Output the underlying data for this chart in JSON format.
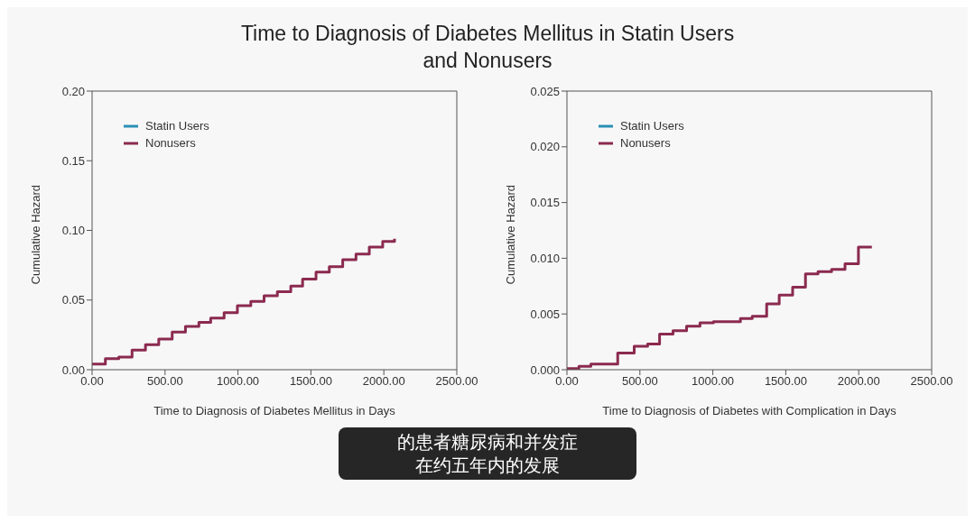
{
  "chart_data": [
    {
      "type": "step",
      "title": "Time to Diagnosis of Diabetes Mellitus in Statin Users and Nonusers",
      "xlabel": "Time to Diagnosis of Diabetes Mellitus in Days",
      "ylabel": "Cumulative Hazard",
      "annotations": [
        "的患者糖尿病和并发症在约五年内的发展"
      ],
      "legend": "top left",
      "grid": false,
      "xlim": [
        0,
        2500
      ],
      "xticks": [
        {
          "value": 0,
          "label": "0.00"
        },
        {
          "value": 500,
          "label": "500.00"
        },
        {
          "value": 1000,
          "label": "1000.00"
        },
        {
          "value": 1500,
          "label": "1500.00"
        },
        {
          "value": 2000,
          "label": "2000.00"
        },
        {
          "value": 2500,
          "label": "2500.00"
        }
      ],
      "ylim": [
        0,
        0.2
      ],
      "yticks": [
        {
          "value": 0,
          "label": "0.00"
        },
        {
          "value": 0.05,
          "label": "0.05"
        },
        {
          "value": 0.1,
          "label": "0.10"
        },
        {
          "value": 0.15,
          "label": "0.15"
        },
        {
          "value": 0.2,
          "label": "0.20"
        }
      ],
      "series": [
        {
          "name": "Statin Users",
          "color": "#2a8fb5"
        },
        {
          "name": "Nonusers",
          "color": "#8b2a4f",
          "x": [
            0,
            91,
            183,
            274,
            366,
            457,
            549,
            640,
            732,
            813,
            905,
            996,
            1088,
            1179,
            1270,
            1362,
            1443,
            1535,
            1626,
            1718,
            1809,
            1900,
            1992,
            2073
          ],
          "values": [
            0.004,
            0.008,
            0.009,
            0.014,
            0.018,
            0.022,
            0.027,
            0.031,
            0.034,
            0.037,
            0.041,
            0.046,
            0.049,
            0.053,
            0.056,
            0.06,
            0.065,
            0.07,
            0.074,
            0.079,
            0.083,
            0.088,
            0.092,
            0.094
          ]
        }
      ]
    },
    {
      "type": "step",
      "xlabel": "Time to Diagnosis of Diabetes with Complication in Days",
      "ylabel": "Cumulative Hazard",
      "legend": "top left",
      "grid": false,
      "xlim": [
        0,
        2500
      ],
      "xticks": [
        {
          "value": 0,
          "label": "0.00"
        },
        {
          "value": 500,
          "label": "500.00"
        },
        {
          "value": 1000,
          "label": "1000.00"
        },
        {
          "value": 1500,
          "label": "1500.00"
        },
        {
          "value": 2000,
          "label": "2000.00"
        },
        {
          "value": 2500,
          "label": "2500.00"
        }
      ],
      "ylim": [
        0,
        0.025
      ],
      "yticks": [
        {
          "value": 0,
          "label": "0.000"
        },
        {
          "value": 0.005,
          "label": "0.005"
        },
        {
          "value": 0.01,
          "label": "0.010"
        },
        {
          "value": 0.015,
          "label": "0.015"
        },
        {
          "value": 0.02,
          "label": "0.020"
        },
        {
          "value": 0.025,
          "label": "0.025"
        }
      ],
      "series": [
        {
          "name": "Statin Users",
          "color": "#2a8fb5"
        },
        {
          "name": "Nonusers",
          "color": "#8b2a4f",
          "x": [
            0,
            82,
            164,
            348,
            461,
            553,
            635,
            727,
            820,
            912,
            1004,
            1189,
            1270,
            1369,
            1455,
            1547,
            1635,
            1721,
            1814,
            1906,
            1998,
            2090
          ],
          "values": [
            0.0001,
            0.0003,
            0.0005,
            0.0015,
            0.0021,
            0.0023,
            0.0032,
            0.0035,
            0.0039,
            0.0042,
            0.0043,
            0.0046,
            0.0048,
            0.0059,
            0.0067,
            0.0074,
            0.0086,
            0.0088,
            0.009,
            0.0095,
            0.011,
            0.011
          ]
        }
      ]
    }
  ]
}
